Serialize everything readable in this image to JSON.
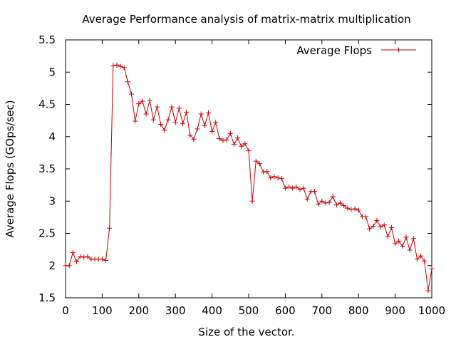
{
  "chart_data": {
    "type": "line",
    "title": "Average Performance analysis of matrix-matrix multiplication",
    "xlabel": "Size of the vector.",
    "ylabel": "Average Flops (GOps/sec)",
    "xlim": [
      0,
      1000
    ],
    "ylim": [
      1.5,
      5.5
    ],
    "x_ticks": [
      0,
      100,
      200,
      300,
      400,
      500,
      600,
      700,
      800,
      900,
      1000
    ],
    "y_ticks": [
      1.5,
      2,
      2.5,
      3,
      3.5,
      4,
      4.5,
      5,
      5.5
    ],
    "x_tick_labels": [
      "0",
      "100",
      "200",
      "300",
      "400",
      "500",
      "600",
      "700",
      "800",
      "900",
      "1000"
    ],
    "y_tick_labels": [
      "1.5",
      "2",
      "2.5",
      "3",
      "3.5",
      "4",
      "4.5",
      "5",
      "5.5"
    ],
    "grid": false,
    "legend_position": "top-right",
    "series": [
      {
        "name": "Average Flops",
        "color": "#cc0000",
        "marker": "plus",
        "x": [
          0,
          10,
          20,
          30,
          40,
          50,
          60,
          70,
          80,
          90,
          100,
          110,
          120,
          130,
          140,
          150,
          160,
          170,
          180,
          190,
          200,
          210,
          220,
          230,
          240,
          250,
          260,
          270,
          280,
          290,
          300,
          310,
          320,
          330,
          340,
          350,
          360,
          370,
          380,
          390,
          400,
          410,
          420,
          430,
          440,
          450,
          460,
          470,
          480,
          490,
          500,
          510,
          520,
          530,
          540,
          550,
          560,
          570,
          580,
          590,
          600,
          610,
          620,
          630,
          640,
          650,
          660,
          670,
          680,
          690,
          700,
          710,
          720,
          730,
          740,
          750,
          760,
          770,
          780,
          790,
          800,
          810,
          820,
          830,
          840,
          850,
          860,
          870,
          880,
          890,
          900,
          910,
          920,
          930,
          940,
          950,
          960,
          970,
          980,
          990,
          1000
        ],
        "y": [
          2.0,
          2.0,
          2.2,
          2.06,
          2.14,
          2.13,
          2.14,
          2.1,
          2.1,
          2.1,
          2.1,
          2.08,
          2.58,
          5.1,
          5.11,
          5.09,
          5.07,
          4.85,
          4.66,
          4.24,
          4.51,
          4.55,
          4.35,
          4.56,
          4.26,
          4.46,
          4.19,
          4.1,
          4.26,
          4.46,
          4.22,
          4.44,
          4.2,
          4.38,
          4.02,
          3.96,
          4.12,
          4.35,
          4.17,
          4.37,
          4.08,
          4.22,
          3.97,
          3.94,
          3.95,
          4.05,
          3.88,
          3.98,
          3.85,
          3.89,
          3.78,
          3.0,
          3.62,
          3.58,
          3.45,
          3.46,
          3.36,
          3.38,
          3.36,
          3.35,
          3.2,
          3.22,
          3.2,
          3.22,
          3.18,
          3.2,
          3.03,
          3.15,
          3.15,
          2.95,
          3.0,
          2.97,
          2.98,
          3.07,
          2.94,
          2.97,
          2.93,
          2.89,
          2.87,
          2.88,
          2.86,
          2.76,
          2.76,
          2.57,
          2.61,
          2.7,
          2.6,
          2.63,
          2.45,
          2.59,
          2.34,
          2.38,
          2.3,
          2.44,
          2.24,
          2.42,
          2.1,
          2.15,
          2.07,
          1.61,
          1.95
        ]
      }
    ]
  }
}
